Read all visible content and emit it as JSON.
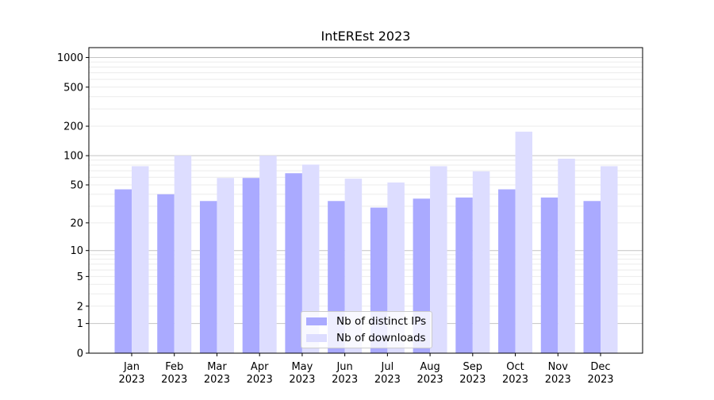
{
  "chart_data": {
    "type": "bar",
    "title": "IntEREst 2023",
    "xlabel": "",
    "ylabel": "",
    "yscale": "symlog (log10(1+y))",
    "ylim": [
      0,
      1260
    ],
    "yticks": [
      0,
      1,
      2,
      5,
      10,
      20,
      50,
      100,
      200,
      500,
      1000
    ],
    "grid": true,
    "legend_position": "bottom-center",
    "categories": [
      "Jan\n2023",
      "Feb\n2023",
      "Mar\n2023",
      "Apr\n2023",
      "May\n2023",
      "Jun\n2023",
      "Jul\n2023",
      "Aug\n2023",
      "Sep\n2023",
      "Oct\n2023",
      "Nov\n2023",
      "Dec\n2023"
    ],
    "series": [
      {
        "name": "Nb of distinct IPs",
        "color": "#aaaaff",
        "values": [
          45,
          40,
          34,
          59,
          66,
          34,
          29,
          36,
          37,
          45,
          37,
          34
        ]
      },
      {
        "name": "Nb of downloads",
        "color": "#ddddff",
        "values": [
          78,
          100,
          59,
          100,
          81,
          58,
          53,
          78,
          69,
          176,
          93,
          78
        ]
      }
    ]
  }
}
